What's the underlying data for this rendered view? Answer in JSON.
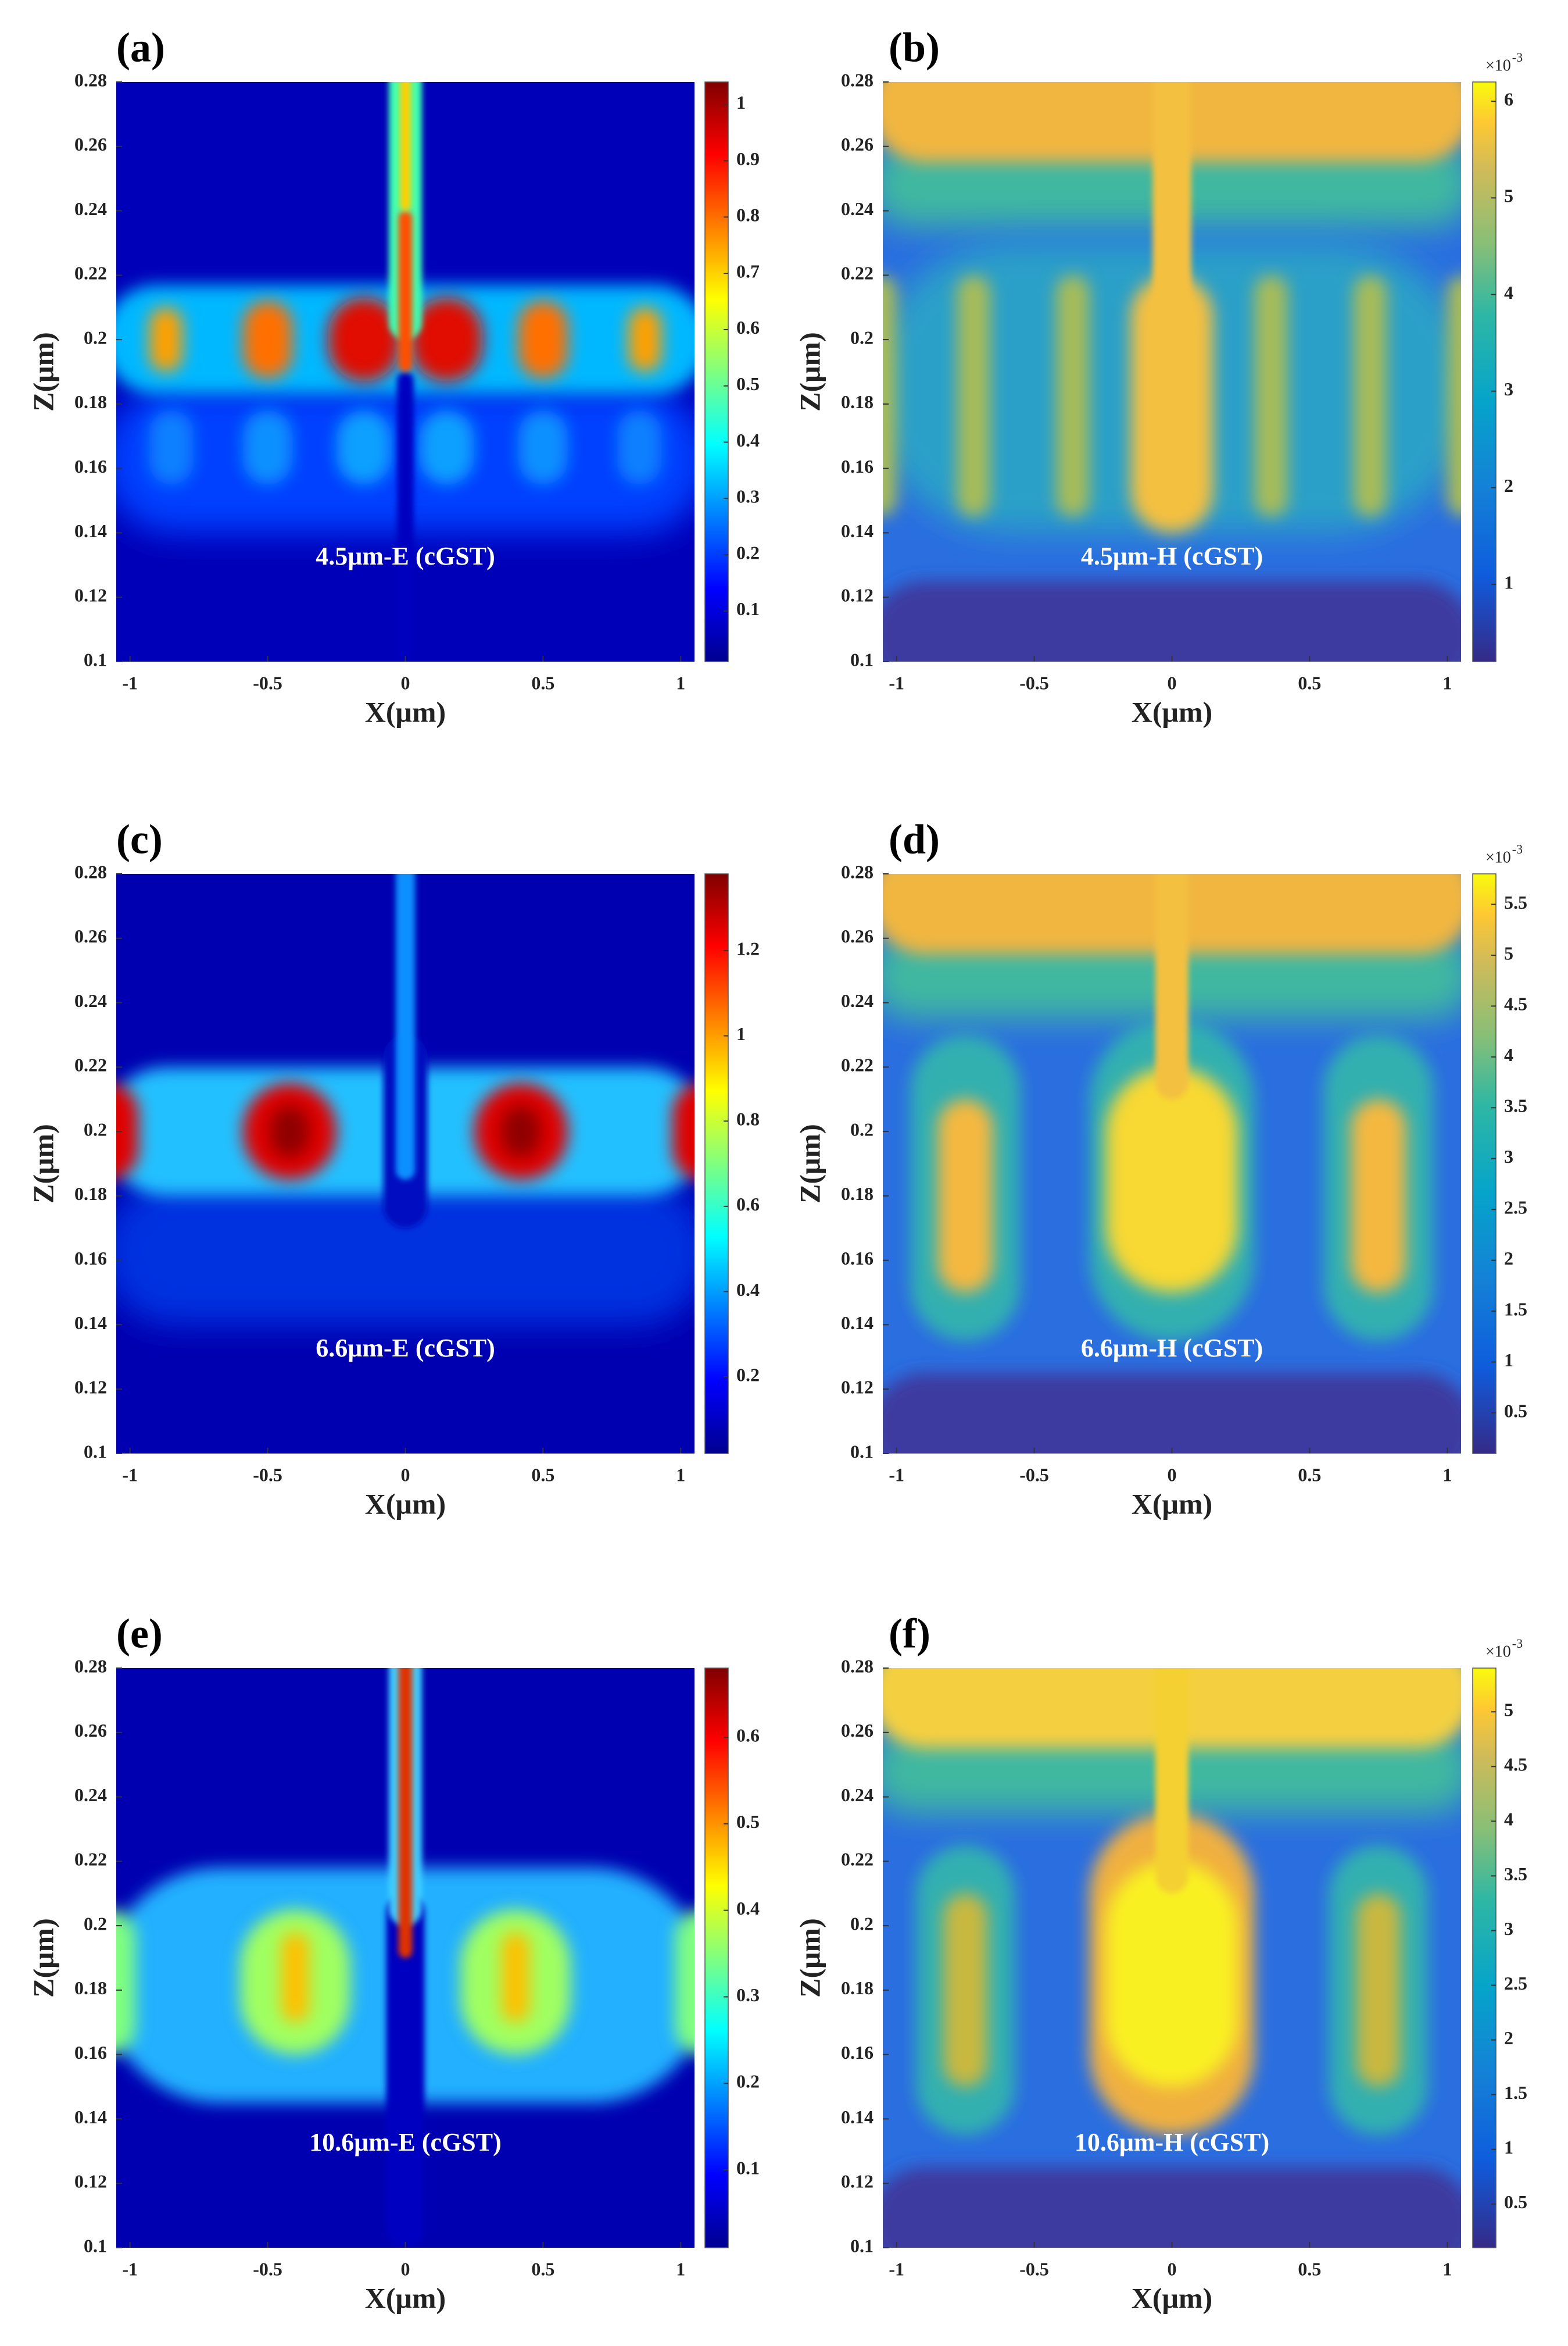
{
  "chart_data": [
    {
      "type": "heatmap",
      "panel_label": "(a)",
      "annotation": "4.5μm-E (cGST)",
      "xlabel": "X(μm)",
      "ylabel": "Z(μm)",
      "xlim": [
        -1.05,
        1.05
      ],
      "ylim": [
        0.1,
        0.28
      ],
      "xticks": [
        -1,
        -0.5,
        0,
        0.5,
        1
      ],
      "yticks": [
        0.1,
        0.12,
        0.14,
        0.16,
        0.18,
        0.2,
        0.22,
        0.24,
        0.26,
        0.28
      ],
      "colormap": "jet",
      "clim": [
        0.01,
        1.04
      ],
      "cticks": [
        0.1,
        0.2,
        0.3,
        0.4,
        0.5,
        0.6,
        0.7,
        0.8,
        0.9,
        1
      ]
    },
    {
      "type": "heatmap",
      "panel_label": "(b)",
      "annotation": "4.5μm-H (cGST)",
      "xlabel": "X(μm)",
      "ylabel": "Z(μm)",
      "xlim": [
        -1.05,
        1.05
      ],
      "ylim": [
        0.1,
        0.28
      ],
      "xticks": [
        -1,
        -0.5,
        0,
        0.5,
        1
      ],
      "yticks": [
        0.1,
        0.12,
        0.14,
        0.16,
        0.18,
        0.2,
        0.22,
        0.24,
        0.26,
        0.28
      ],
      "colormap": "parula",
      "clim": [
        0.2,
        6.2
      ],
      "cticks": [
        1,
        2,
        3,
        4,
        5,
        6
      ],
      "colorbar_multiplier": "×10",
      "colorbar_exponent": "-3"
    },
    {
      "type": "heatmap",
      "panel_label": "(c)",
      "annotation": "6.6μm-E (cGST)",
      "xlabel": "X(μm)",
      "ylabel": "Z(μm)",
      "xlim": [
        -1.05,
        1.05
      ],
      "ylim": [
        0.1,
        0.28
      ],
      "xticks": [
        -1,
        -0.5,
        0,
        0.5,
        1
      ],
      "yticks": [
        0.1,
        0.12,
        0.14,
        0.16,
        0.18,
        0.2,
        0.22,
        0.24,
        0.26,
        0.28
      ],
      "colormap": "jet",
      "clim": [
        0.02,
        1.38
      ],
      "cticks": [
        0.2,
        0.4,
        0.6,
        0.8,
        1,
        1.2
      ]
    },
    {
      "type": "heatmap",
      "panel_label": "(d)",
      "annotation": "6.6μm-H (cGST)",
      "xlabel": "X(μm)",
      "ylabel": "Z(μm)",
      "xlim": [
        -1.05,
        1.05
      ],
      "ylim": [
        0.1,
        0.28
      ],
      "xticks": [
        -1,
        -0.5,
        0,
        0.5,
        1
      ],
      "yticks": [
        0.1,
        0.12,
        0.14,
        0.16,
        0.18,
        0.2,
        0.22,
        0.24,
        0.26,
        0.28
      ],
      "colormap": "parula",
      "clim": [
        0.1,
        5.8
      ],
      "cticks": [
        0.5,
        1,
        1.5,
        2,
        2.5,
        3,
        3.5,
        4,
        4.5,
        5,
        5.5
      ],
      "colorbar_multiplier": "×10",
      "colorbar_exponent": "-3"
    },
    {
      "type": "heatmap",
      "panel_label": "(e)",
      "annotation": "10.6μm-E (cGST)",
      "xlabel": "X(μm)",
      "ylabel": "Z(μm)",
      "xlim": [
        -1.05,
        1.05
      ],
      "ylim": [
        0.1,
        0.28
      ],
      "xticks": [
        -1,
        -0.5,
        0,
        0.5,
        1
      ],
      "yticks": [
        0.1,
        0.12,
        0.14,
        0.16,
        0.18,
        0.2,
        0.22,
        0.24,
        0.26,
        0.28
      ],
      "colormap": "jet",
      "clim": [
        0.01,
        0.68
      ],
      "cticks": [
        0.1,
        0.2,
        0.3,
        0.4,
        0.5,
        0.6
      ]
    },
    {
      "type": "heatmap",
      "panel_label": "(f)",
      "annotation": "10.6μm-H (cGST)",
      "xlabel": "X(μm)",
      "ylabel": "Z(μm)",
      "xlim": [
        -1.05,
        1.05
      ],
      "ylim": [
        0.1,
        0.28
      ],
      "xticks": [
        -1,
        -0.5,
        0,
        0.5,
        1
      ],
      "yticks": [
        0.1,
        0.12,
        0.14,
        0.16,
        0.18,
        0.2,
        0.22,
        0.24,
        0.26,
        0.28
      ],
      "colormap": "parula",
      "clim": [
        0.1,
        5.4
      ],
      "cticks": [
        0.5,
        1,
        1.5,
        2,
        2.5,
        3,
        3.5,
        4,
        4.5,
        5
      ],
      "colorbar_multiplier": "×10",
      "colorbar_exponent": "-3"
    }
  ]
}
